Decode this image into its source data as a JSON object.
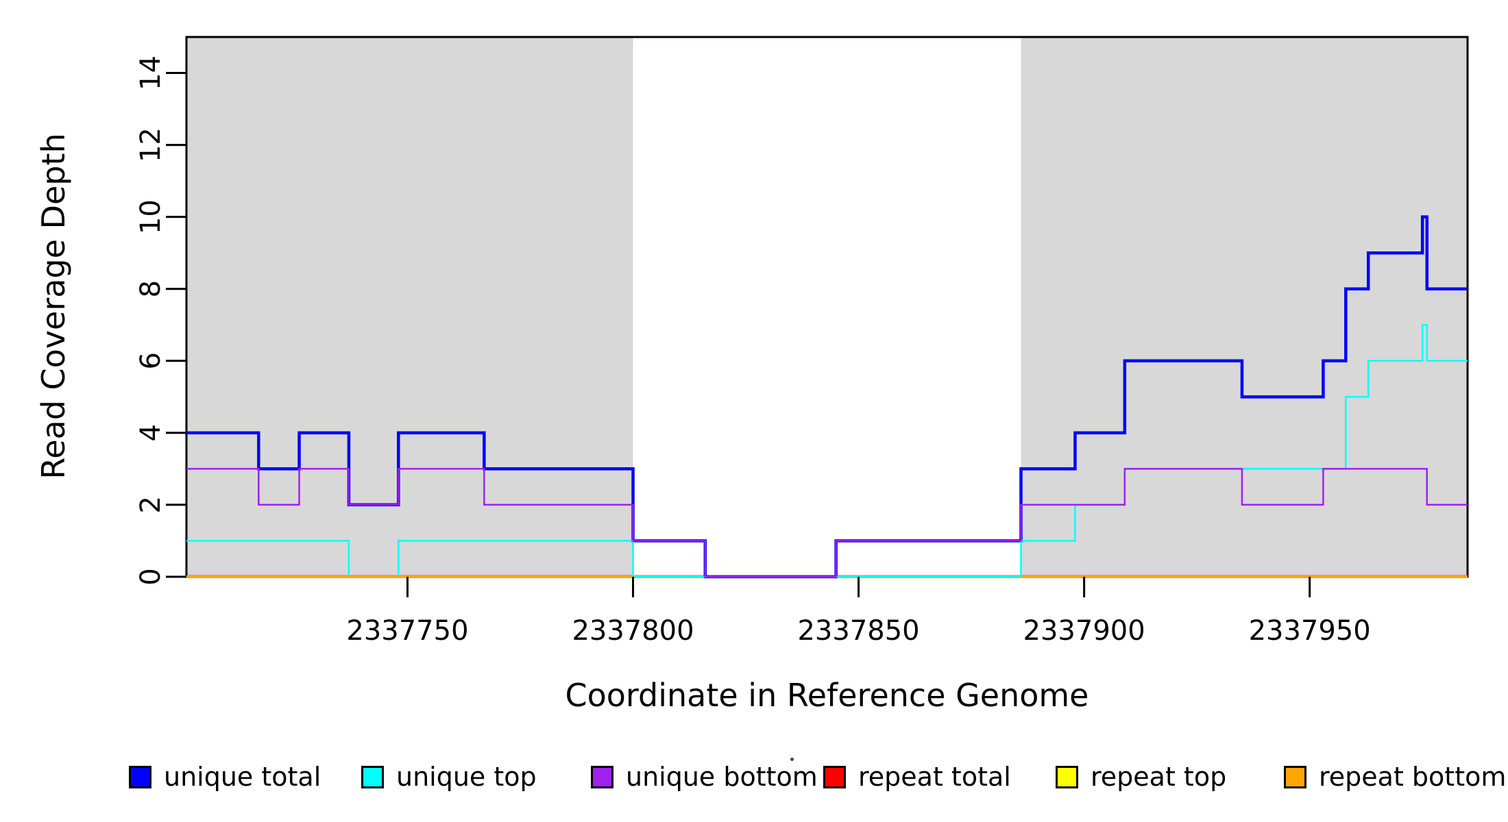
{
  "figure": {
    "kind": "read coverage step plot",
    "background_color": "#FFFFFF",
    "shaded_region_color": "#D8D8D8",
    "axis_color": "#000000"
  },
  "chart_data": {
    "type": "line",
    "step_style": "post",
    "title": "",
    "xlabel": "Coordinate in Reference Genome",
    "ylabel": "Read Coverage Depth",
    "xlim": [
      2337701,
      2337985
    ],
    "ylim": [
      0,
      15
    ],
    "x_ticks": [
      2337750,
      2337800,
      2337850,
      2337900,
      2337950
    ],
    "y_ticks": [
      0,
      2,
      4,
      6,
      8,
      10,
      12,
      14
    ],
    "grid": false,
    "legend_position": "bottom",
    "shaded_x_regions": [
      [
        2337701,
        2337800
      ],
      [
        2337886,
        2337985
      ]
    ],
    "series": [
      {
        "name": "unique total",
        "color": "#0000FF",
        "line_width": 4.5,
        "segments": [
          [
            2337701,
            2337717,
            4
          ],
          [
            2337717,
            2337726,
            3
          ],
          [
            2337726,
            2337737,
            4
          ],
          [
            2337737,
            2337748,
            2
          ],
          [
            2337748,
            2337767,
            4
          ],
          [
            2337767,
            2337800,
            3
          ],
          [
            2337800,
            2337816,
            1
          ],
          [
            2337816,
            2337845,
            0
          ],
          [
            2337845,
            2337886,
            1
          ],
          [
            2337886,
            2337898,
            3
          ],
          [
            2337898,
            2337909,
            4
          ],
          [
            2337909,
            2337935,
            6
          ],
          [
            2337935,
            2337953,
            5
          ],
          [
            2337953,
            2337958,
            6
          ],
          [
            2337958,
            2337963,
            8
          ],
          [
            2337963,
            2337975,
            9
          ],
          [
            2337975,
            2337976,
            10
          ],
          [
            2337976,
            2337985,
            8
          ]
        ]
      },
      {
        "name": "unique top",
        "color": "#00FFFF",
        "line_width": 2.5,
        "segments": [
          [
            2337701,
            2337737,
            1
          ],
          [
            2337737,
            2337748,
            0
          ],
          [
            2337748,
            2337800,
            1
          ],
          [
            2337800,
            2337886,
            0
          ],
          [
            2337886,
            2337898,
            1
          ],
          [
            2337898,
            2337909,
            2
          ],
          [
            2337909,
            2337958,
            3
          ],
          [
            2337958,
            2337963,
            5
          ],
          [
            2337963,
            2337975,
            6
          ],
          [
            2337975,
            2337976,
            7
          ],
          [
            2337976,
            2337985,
            6
          ]
        ]
      },
      {
        "name": "unique bottom",
        "color": "#A020F0",
        "line_width": 2.5,
        "segments": [
          [
            2337701,
            2337717,
            3
          ],
          [
            2337717,
            2337726,
            2
          ],
          [
            2337726,
            2337737,
            3
          ],
          [
            2337737,
            2337748,
            2
          ],
          [
            2337748,
            2337767,
            3
          ],
          [
            2337767,
            2337800,
            2
          ],
          [
            2337800,
            2337816,
            1
          ],
          [
            2337816,
            2337845,
            0
          ],
          [
            2337845,
            2337886,
            1
          ],
          [
            2337886,
            2337909,
            2
          ],
          [
            2337909,
            2337935,
            3
          ],
          [
            2337935,
            2337953,
            2
          ],
          [
            2337953,
            2337976,
            3
          ],
          [
            2337976,
            2337985,
            2
          ]
        ]
      },
      {
        "name": "repeat total",
        "color": "#FF0000",
        "line_width": 2,
        "segments": [
          [
            2337701,
            2337985,
            0
          ]
        ]
      },
      {
        "name": "repeat top",
        "color": "#FFFF00",
        "line_width": 2,
        "segments": [
          [
            2337701,
            2337985,
            0
          ]
        ]
      },
      {
        "name": "repeat bottom",
        "color": "#FFA500",
        "line_width": 4,
        "segments": [
          [
            2337701,
            2337985,
            0
          ]
        ]
      }
    ]
  },
  "legend": {
    "items": [
      {
        "label": "unique total",
        "color": "#0000FF"
      },
      {
        "label": "unique top",
        "color": "#00FFFF"
      },
      {
        "label": "unique bottom",
        "color": "#A020F0"
      },
      {
        "label": "repeat total",
        "color": "#FF0000"
      },
      {
        "label": "repeat top",
        "color": "#FFFF00"
      },
      {
        "label": "repeat bottom",
        "color": "#FFA500"
      }
    ]
  }
}
